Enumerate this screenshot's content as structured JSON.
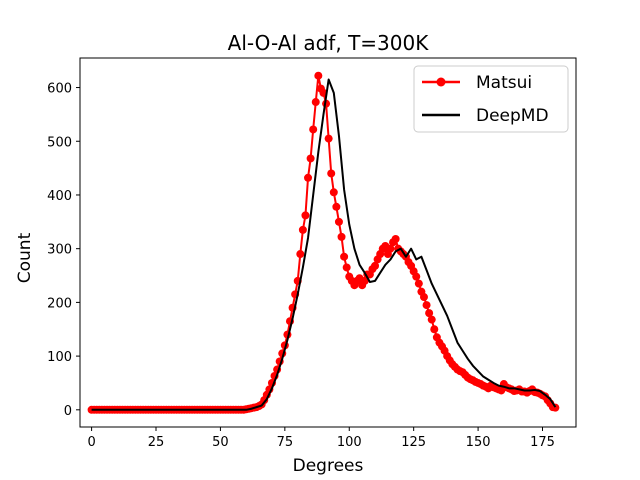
{
  "chart_data": {
    "type": "line",
    "title": "Al-O-Al adf, T=300K",
    "xlabel": "Degrees",
    "ylabel": "Count",
    "xlim": [
      -4.5,
      188
    ],
    "ylim": [
      -32,
      655
    ],
    "xticks": [
      0,
      25,
      50,
      75,
      100,
      125,
      150,
      175
    ],
    "yticks": [
      0,
      100,
      200,
      300,
      400,
      500,
      600
    ],
    "grid": false,
    "legend_position": "top-right",
    "series": [
      {
        "name": "Matsui",
        "color": "#ff0000",
        "marker": "circle",
        "x": [
          0,
          1,
          2,
          3,
          4,
          5,
          6,
          7,
          8,
          9,
          10,
          11,
          12,
          13,
          14,
          15,
          16,
          17,
          18,
          19,
          20,
          21,
          22,
          23,
          24,
          25,
          26,
          27,
          28,
          29,
          30,
          31,
          32,
          33,
          34,
          35,
          36,
          37,
          38,
          39,
          40,
          41,
          42,
          43,
          44,
          45,
          46,
          47,
          48,
          49,
          50,
          51,
          52,
          53,
          54,
          55,
          56,
          57,
          58,
          59,
          60,
          61,
          62,
          63,
          64,
          65,
          66,
          67,
          68,
          69,
          70,
          71,
          72,
          73,
          74,
          75,
          76,
          77,
          78,
          79,
          80,
          81,
          82,
          83,
          84,
          85,
          86,
          87,
          88,
          89,
          90,
          91,
          92,
          93,
          94,
          95,
          96,
          97,
          98,
          99,
          100,
          101,
          102,
          103,
          104,
          105,
          106,
          107,
          108,
          109,
          110,
          111,
          112,
          113,
          114,
          115,
          116,
          117,
          118,
          119,
          120,
          121,
          122,
          123,
          124,
          125,
          126,
          127,
          128,
          129,
          130,
          131,
          132,
          133,
          134,
          135,
          136,
          137,
          138,
          139,
          140,
          141,
          142,
          143,
          144,
          145,
          146,
          147,
          148,
          149,
          150,
          151,
          152,
          153,
          154,
          155,
          156,
          157,
          158,
          159,
          160,
          161,
          162,
          163,
          164,
          165,
          166,
          167,
          168,
          169,
          170,
          171,
          172,
          173,
          174,
          175,
          176,
          177,
          178,
          179,
          180
        ],
        "y": [
          0,
          0,
          0,
          0,
          0,
          0,
          0,
          0,
          0,
          0,
          0,
          0,
          0,
          0,
          0,
          0,
          0,
          0,
          0,
          0,
          0,
          0,
          0,
          0,
          0,
          0,
          0,
          0,
          0,
          0,
          0,
          0,
          0,
          0,
          0,
          0,
          0,
          0,
          0,
          0,
          0,
          0,
          0,
          0,
          0,
          0,
          0,
          0,
          0,
          0,
          0,
          0,
          0,
          0,
          0,
          0,
          0,
          0,
          0,
          0,
          1,
          2,
          3,
          4,
          5,
          7,
          10,
          18,
          28,
          38,
          50,
          63,
          75,
          90,
          105,
          120,
          140,
          165,
          190,
          215,
          240,
          290,
          335,
          362,
          432,
          468,
          522,
          573,
          622,
          598,
          590,
          570,
          505,
          440,
          405,
          378,
          350,
          322,
          285,
          265,
          248,
          240,
          232,
          240,
          245,
          232,
          240,
          252,
          252,
          262,
          268,
          280,
          290,
          300,
          305,
          290,
          300,
          312,
          318,
          300,
          295,
          290,
          285,
          275,
          268,
          258,
          248,
          235,
          220,
          210,
          195,
          180,
          168,
          150,
          135,
          125,
          118,
          110,
          100,
          92,
          85,
          80,
          75,
          72,
          70,
          65,
          60,
          57,
          55,
          52,
          50,
          48,
          45,
          43,
          40,
          45,
          42,
          40,
          38,
          36,
          48,
          42,
          40,
          38,
          35,
          36,
          38,
          34,
          34,
          32,
          35,
          38,
          33,
          32,
          30,
          27,
          25,
          18,
          12,
          5,
          4
        ]
      },
      {
        "name": "DeepMD",
        "color": "#000000",
        "marker": "none",
        "x": [
          0,
          2,
          4,
          6,
          8,
          10,
          12,
          14,
          16,
          18,
          20,
          22,
          24,
          26,
          28,
          30,
          32,
          34,
          36,
          38,
          40,
          42,
          44,
          46,
          48,
          50,
          52,
          54,
          56,
          58,
          60,
          62,
          64,
          66,
          68,
          70,
          72,
          74,
          76,
          78,
          80,
          82,
          84,
          86,
          88,
          90,
          92,
          94,
          96,
          98,
          100,
          102,
          104,
          106,
          108,
          110,
          112,
          114,
          116,
          118,
          120,
          122,
          124,
          126,
          128,
          130,
          132,
          134,
          136,
          138,
          140,
          142,
          144,
          146,
          148,
          150,
          152,
          154,
          156,
          158,
          160,
          162,
          164,
          166,
          168,
          170,
          172,
          174,
          176,
          178,
          180
        ],
        "y": [
          0,
          0,
          0,
          0,
          0,
          0,
          0,
          0,
          0,
          0,
          0,
          0,
          0,
          0,
          0,
          0,
          0,
          0,
          0,
          0,
          0,
          0,
          0,
          0,
          0,
          0,
          0,
          0,
          0,
          0,
          0,
          2,
          5,
          8,
          20,
          40,
          65,
          95,
          130,
          170,
          215,
          265,
          320,
          400,
          480,
          550,
          615,
          590,
          510,
          410,
          345,
          300,
          270,
          255,
          238,
          240,
          255,
          270,
          280,
          295,
          300,
          285,
          300,
          280,
          285,
          260,
          235,
          215,
          195,
          175,
          150,
          125,
          110,
          95,
          82,
          72,
          62,
          56,
          50,
          45,
          43,
          40,
          40,
          38,
          36,
          36,
          37,
          35,
          28,
          20,
          5
        ]
      }
    ]
  }
}
